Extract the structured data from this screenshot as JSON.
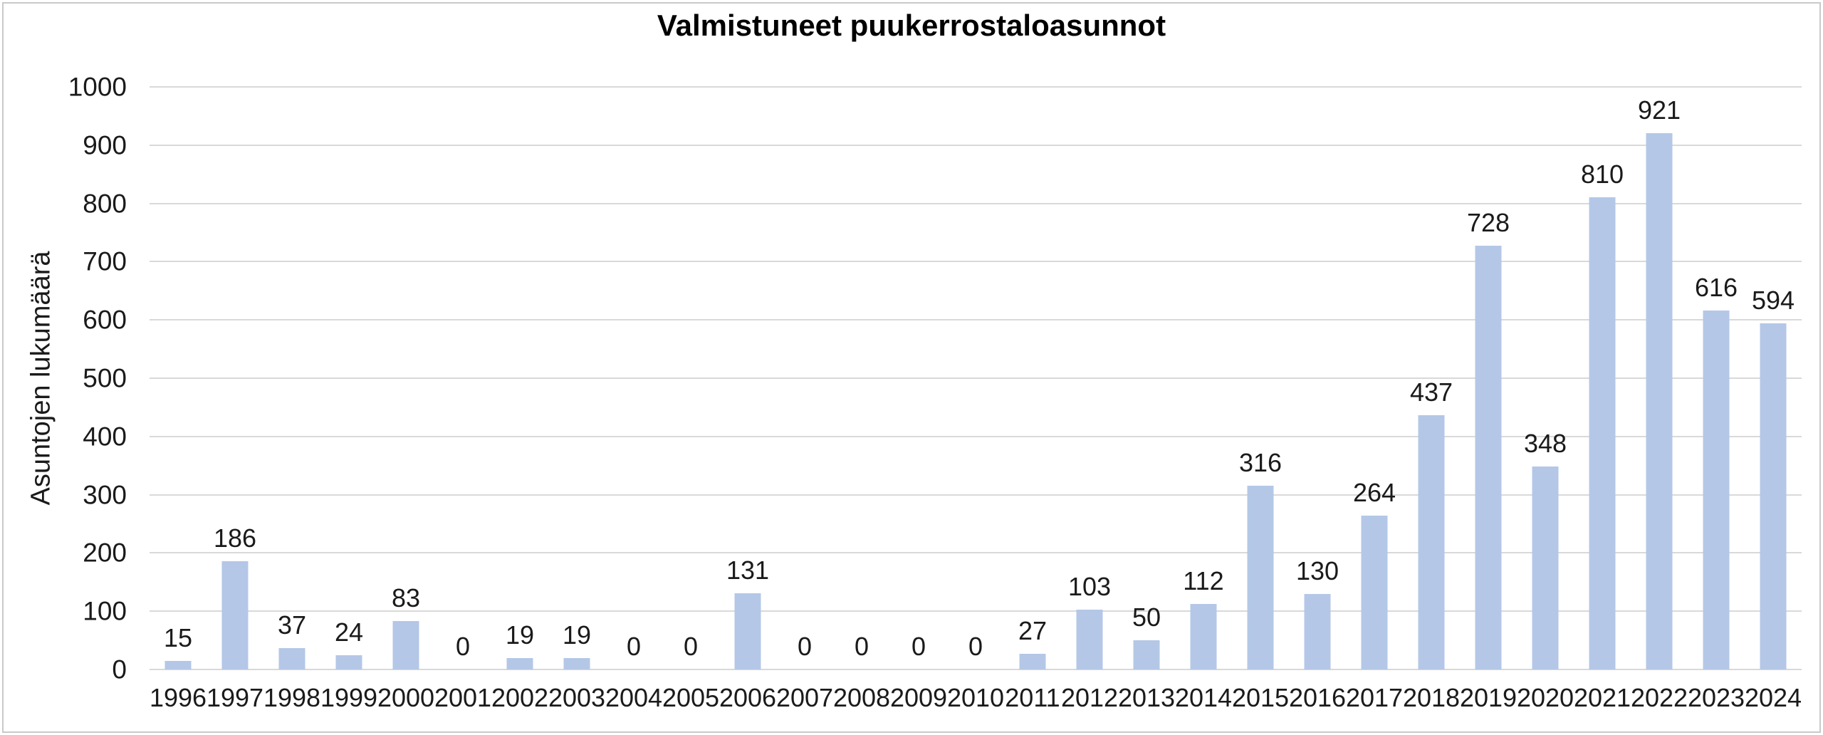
{
  "chart": {
    "title": "Valmistuneet puukerrostaloasunnot",
    "y_axis_title": "Asuntojen lukumäärä"
  },
  "chart_data": {
    "type": "bar",
    "title": "Valmistuneet puukerrostaloasunnot",
    "xlabel": "",
    "ylabel": "Asuntojen lukumäärä",
    "categories": [
      "1996",
      "1997",
      "1998",
      "1999",
      "2000",
      "2001",
      "2002",
      "2003",
      "2004",
      "2005",
      "2006",
      "2007",
      "2008",
      "2009",
      "2010",
      "2011",
      "2012",
      "2013",
      "2014",
      "2015",
      "2016",
      "2017",
      "2018",
      "2019",
      "2020",
      "2021",
      "2022",
      "2023",
      "2024"
    ],
    "values": [
      15,
      186,
      37,
      24,
      83,
      0,
      19,
      19,
      0,
      0,
      131,
      0,
      0,
      0,
      0,
      27,
      103,
      50,
      112,
      316,
      130,
      264,
      437,
      728,
      348,
      810,
      921,
      616,
      594
    ],
    "ylim": [
      0,
      1000
    ],
    "yticks": [
      0,
      100,
      200,
      300,
      400,
      500,
      600,
      700,
      800,
      900,
      1000
    ],
    "grid": "horizontal",
    "legend": "none",
    "data_labels": "above-bars",
    "colors": {
      "bar_fill": "#b4c7e7",
      "gridline": "#d9d9d9",
      "axis_line": "#d9d9d9",
      "label_text": "#1a1a1a",
      "title_text": "#000000",
      "background": "#ffffff",
      "border": "#c9c9c9"
    }
  }
}
